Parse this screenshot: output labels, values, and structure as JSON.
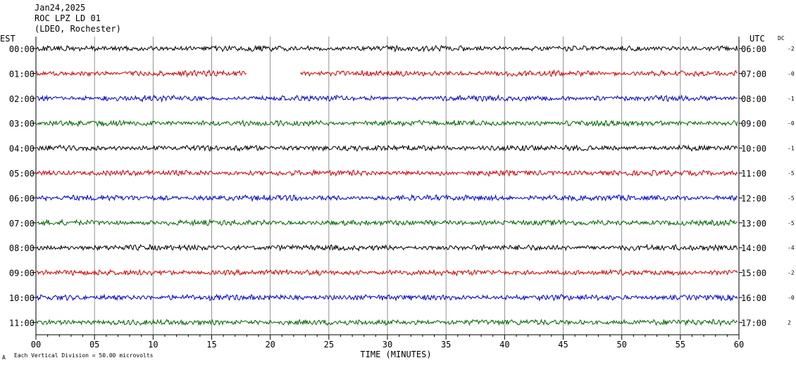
{
  "header": {
    "date": "Jan24,2025",
    "station": "ROC LPZ LD 01",
    "network": "(LDEO, Rochester)"
  },
  "left_axis_label": "EST",
  "right_axis_label": "UTC",
  "dc_label": "DC",
  "footer": {
    "note": "Each Vertical Division =   50.00 microvolts",
    "small_mark": "A"
  },
  "chart_data": {
    "type": "line",
    "xlabel": "TIME (MINUTES)",
    "xlim": [
      0,
      60
    ],
    "x_ticks": [
      "00",
      "05",
      "10",
      "15",
      "20",
      "25",
      "30",
      "35",
      "40",
      "45",
      "50",
      "55",
      "60"
    ],
    "grid": "vertical gridlines every 5 minutes",
    "series": [
      {
        "est": "00:00",
        "utc": "06:00",
        "dc": "-2",
        "color": "#000000",
        "gaps": []
      },
      {
        "est": "01:00",
        "utc": "07:00",
        "dc": "-0",
        "color": "#cc0000",
        "gaps": [
          [
            18.0,
            22.5
          ]
        ]
      },
      {
        "est": "02:00",
        "utc": "08:00",
        "dc": "-1",
        "color": "#0000cc",
        "gaps": []
      },
      {
        "est": "03:00",
        "utc": "09:00",
        "dc": "-0",
        "color": "#006600",
        "gaps": []
      },
      {
        "est": "04:00",
        "utc": "10:00",
        "dc": "-1",
        "color": "#000000",
        "gaps": []
      },
      {
        "est": "05:00",
        "utc": "11:00",
        "dc": "-5",
        "color": "#cc0000",
        "gaps": []
      },
      {
        "est": "06:00",
        "utc": "12:00",
        "dc": "-5",
        "color": "#0000cc",
        "gaps": []
      },
      {
        "est": "07:00",
        "utc": "13:00",
        "dc": "-5",
        "color": "#006600",
        "gaps": []
      },
      {
        "est": "08:00",
        "utc": "14:00",
        "dc": "-4",
        "color": "#000000",
        "gaps": []
      },
      {
        "est": "09:00",
        "utc": "15:00",
        "dc": "-2",
        "color": "#cc0000",
        "gaps": []
      },
      {
        "est": "10:00",
        "utc": "16:00",
        "dc": "-0",
        "color": "#0000cc",
        "gaps": []
      },
      {
        "est": "11:00",
        "utc": "17:00",
        "dc": "2",
        "color": "#006600",
        "gaps": []
      }
    ]
  }
}
